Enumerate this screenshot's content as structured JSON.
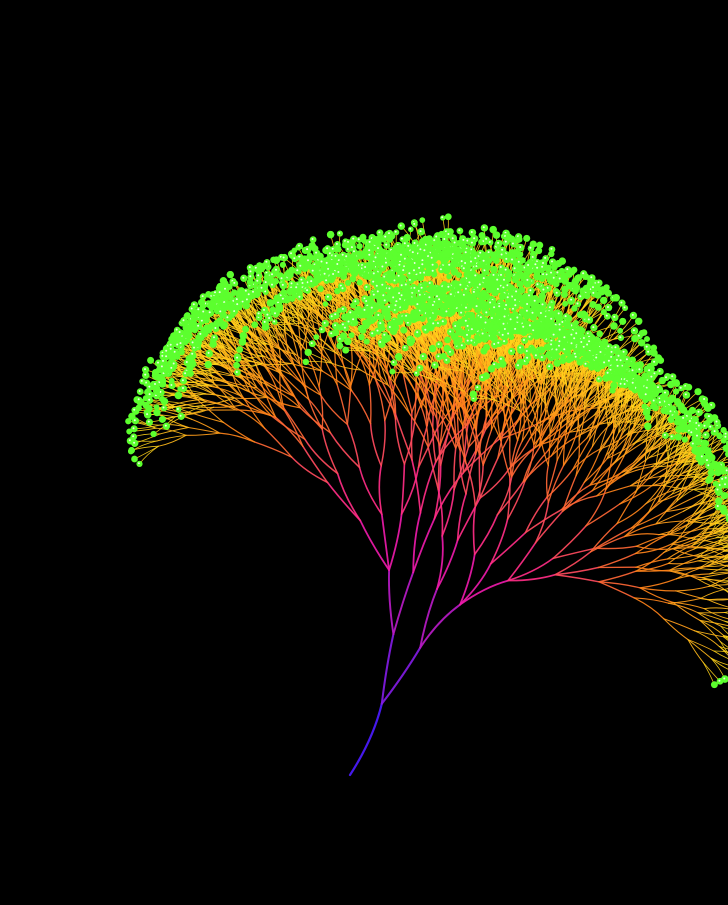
{
  "background_color": "#000000",
  "artwork": {
    "subject": "generative-branching-tree",
    "palette": {
      "trunk": "#4b1bff",
      "lower_branches": "#ff1aa0",
      "mid_branches": "#ff7a1a",
      "upper_branches": "#ffd21a",
      "leaf_nodes": "#5cff2e",
      "leaf_highlight": "#e9ffe0"
    },
    "branch_depth": 10,
    "fan_direction": "upper-left"
  }
}
